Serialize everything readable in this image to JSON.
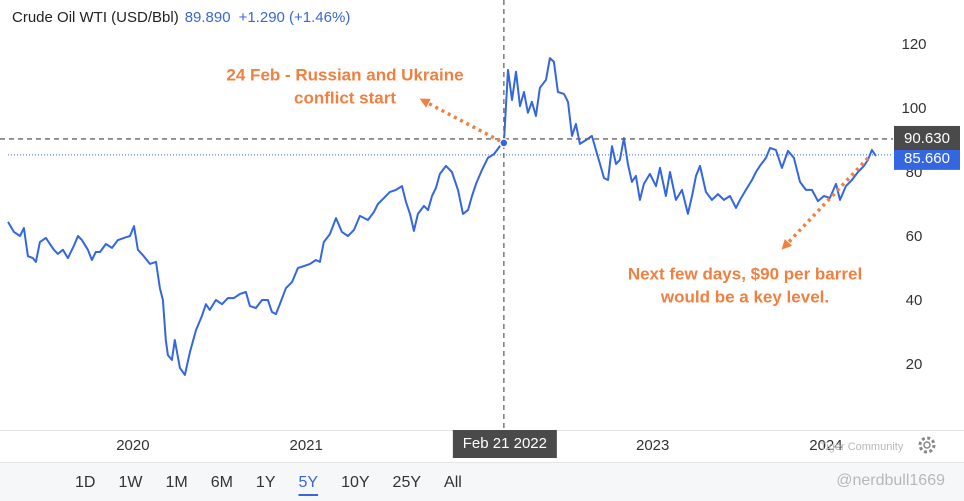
{
  "header": {
    "title": "Crude Oil WTI (USD/Bbl)",
    "price": "89.890",
    "change": "+1.290 (+1.46%)"
  },
  "chart_data": {
    "type": "line",
    "color": "#3366e0",
    "x": [
      2019.279,
      2019.313,
      2019.348,
      2019.371,
      2019.394,
      2019.423,
      2019.44,
      2019.463,
      2019.498,
      2019.521,
      2019.544,
      2019.567,
      2019.596,
      2019.625,
      2019.659,
      2019.683,
      2019.706,
      2019.74,
      2019.763,
      2019.786,
      2019.81,
      2019.844,
      2019.879,
      2019.913,
      2019.948,
      2019.983,
      2020.006,
      2020.029,
      2020.063,
      2020.098,
      2020.133,
      2020.156,
      2020.173,
      2020.19,
      2020.202,
      2020.225,
      2020.242,
      2020.271,
      2020.3,
      2020.329,
      2020.364,
      2020.398,
      2020.421,
      2020.444,
      2020.479,
      2020.514,
      2020.548,
      2020.583,
      2020.618,
      2020.652,
      2020.675,
      2020.71,
      2020.745,
      2020.779,
      2020.802,
      2020.825,
      2020.848,
      2020.883,
      2020.918,
      2020.952,
      2020.987,
      2021.022,
      2021.056,
      2021.079,
      2021.102,
      2021.137,
      2021.172,
      2021.206,
      2021.241,
      2021.276,
      2021.31,
      2021.356,
      2021.391,
      2021.414,
      2021.449,
      2021.483,
      2021.518,
      2021.553,
      2021.576,
      2021.599,
      2021.622,
      2021.645,
      2021.68,
      2021.703,
      2021.726,
      2021.749,
      2021.772,
      2021.807,
      2021.841,
      2021.876,
      2021.905,
      2021.934,
      2021.957,
      2021.98,
      2022.014,
      2022.049,
      2022.084,
      2022.118,
      2022.141,
      2022.165,
      2022.188,
      2022.211,
      2022.234,
      2022.257,
      2022.28,
      2022.303,
      2022.326,
      2022.349,
      2022.384,
      2022.407,
      2022.43,
      2022.453,
      2022.488,
      2022.511,
      2022.534,
      2022.557,
      2022.58,
      2022.615,
      2022.649,
      2022.672,
      2022.696,
      2022.719,
      2022.742,
      2022.765,
      2022.788,
      2022.811,
      2022.834,
      2022.857,
      2022.88,
      2022.903,
      2022.926,
      2022.949,
      2022.984,
      2023.019,
      2023.042,
      2023.076,
      2023.1,
      2023.134,
      2023.169,
      2023.203,
      2023.227,
      2023.25,
      2023.273,
      2023.307,
      2023.342,
      2023.377,
      2023.411,
      2023.446,
      2023.481,
      2023.504,
      2023.538,
      2023.573,
      2023.596,
      2023.619,
      2023.654,
      2023.677,
      2023.711,
      2023.746,
      2023.781,
      2023.815,
      2023.85,
      2023.884,
      2023.919,
      2023.954,
      2023.988,
      2024.023,
      2024.058,
      2024.081,
      2024.115,
      2024.15,
      2024.185,
      2024.219,
      2024.242,
      2024.265,
      2024.289
    ],
    "values": [
      64.7,
      61.6,
      60.3,
      62.8,
      54,
      53.4,
      52.2,
      58.4,
      59.7,
      57.8,
      56,
      54.7,
      56,
      53.4,
      57.2,
      60.3,
      59,
      56,
      52.8,
      55.3,
      55.3,
      57.8,
      56.6,
      59,
      59.7,
      60.3,
      63.4,
      56,
      54,
      51.6,
      52.2,
      44,
      40.3,
      27.8,
      23.1,
      21.6,
      27.8,
      19.1,
      16.9,
      24,
      30.9,
      35.3,
      39,
      37.2,
      40.3,
      39,
      40.9,
      40.9,
      42.2,
      42.8,
      38.4,
      37.8,
      40.3,
      40.3,
      36.6,
      35.9,
      39,
      44,
      45.9,
      50.3,
      50.9,
      51.6,
      52.8,
      52.2,
      58.4,
      60.9,
      65.9,
      61.6,
      60.3,
      62.2,
      66.6,
      65.3,
      67.8,
      70.3,
      72.2,
      74.1,
      74.7,
      75.9,
      70.9,
      67.2,
      61.9,
      67.2,
      69.7,
      68.4,
      72.8,
      75.3,
      79.7,
      82.2,
      80.3,
      74.7,
      67.2,
      68.4,
      72.8,
      76.6,
      80.9,
      84.7,
      85.9,
      88.4,
      89.4,
      112.2,
      102.8,
      111.6,
      100.9,
      105.3,
      98.8,
      102.2,
      97.8,
      106.6,
      109.1,
      115.9,
      114.7,
      105.3,
      104.7,
      102.2,
      91.6,
      95.3,
      89.1,
      90.3,
      91.6,
      87.2,
      82.8,
      78.4,
      77.8,
      88.4,
      82.8,
      84.1,
      90.9,
      82.8,
      77.2,
      79.1,
      71.6,
      76.6,
      79.7,
      75.9,
      81.6,
      72.8,
      80.3,
      71.6,
      74.7,
      67.2,
      72.8,
      79.1,
      82.2,
      74.1,
      71.6,
      73.4,
      71.6,
      72.8,
      69.1,
      71.6,
      74.7,
      77.8,
      80.3,
      82.2,
      84.7,
      87.8,
      87.2,
      81.6,
      86.9,
      84.7,
      77.2,
      74.7,
      74.7,
      71.2,
      72.8,
      72.2,
      76.6,
      71.6,
      75.9,
      77.8,
      80.3,
      82.2,
      84.1,
      87.2,
      85.3
    ],
    "xlim": [
      2019.279,
      2024.387
    ],
    "xticks": [
      2020,
      2021,
      2023,
      2024
    ],
    "ylim": [
      0,
      132.8
    ],
    "yticks": [
      20,
      40,
      60,
      80,
      100,
      120
    ],
    "crosshair_x": {
      "value": 2022.141,
      "label": "Feb 21 2022"
    },
    "crosshair_y": {
      "value": 90.63,
      "label": "90.630"
    },
    "last_price": {
      "value": 85.66,
      "label": "85.660"
    },
    "annotations": [
      {
        "lines": [
          "24 Feb - Russian and Ukraine",
          "conflict start"
        ],
        "color": "#f08040"
      },
      {
        "lines": [
          "Next few days, $90 per barrel",
          "would be a key level."
        ],
        "color": "#f08040"
      }
    ]
  },
  "range_buttons": [
    "1D",
    "1W",
    "1M",
    "6M",
    "1Y",
    "5Y",
    "10Y",
    "25Y",
    "All"
  ],
  "selected_range": "5Y",
  "watermarks": {
    "source": "Tiger Community",
    "author": "@nerdbull1669"
  }
}
